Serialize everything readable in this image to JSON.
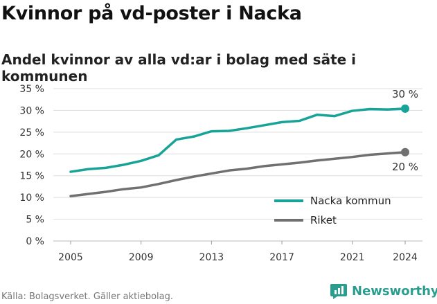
{
  "title": "Kvinnor på vd-poster i Nacka",
  "subtitle": "Andel kvinnor av alla vd:ar i bolag med säte i kommunen",
  "source": "Källa: Bolagsverket. Gäller aktiebolag.",
  "brand": {
    "name": "Newsworthy",
    "icon": "newsworthy-logo-icon",
    "color": "#2a9d8f"
  },
  "chart_data": {
    "type": "line",
    "title": "Kvinnor på vd-poster i Nacka",
    "subtitle": "Andel kvinnor av alla vd:ar i bolag med säte i kommunen",
    "xlabel": "",
    "ylabel": "",
    "x": [
      2005,
      2006,
      2007,
      2008,
      2009,
      2010,
      2011,
      2012,
      2013,
      2014,
      2015,
      2016,
      2017,
      2018,
      2019,
      2020,
      2021,
      2022,
      2023,
      2024
    ],
    "x_ticks": [
      "2005",
      "2009",
      "2013",
      "2017",
      "2021",
      "2024"
    ],
    "ylim": [
      0,
      35
    ],
    "y_ticks": [
      "0 %",
      "5 %",
      "10 %",
      "15 %",
      "20 %",
      "25 %",
      "30 %",
      "35 %"
    ],
    "grid": "horizontal",
    "legend_position": "bottom-right",
    "series": [
      {
        "name": "Nacka kommun",
        "color": "#17a398",
        "end_label": "30 %",
        "values": [
          15.9,
          16.5,
          16.8,
          17.5,
          18.4,
          19.7,
          23.3,
          24.0,
          25.2,
          25.3,
          25.9,
          26.6,
          27.3,
          27.6,
          29.0,
          28.7,
          29.9,
          30.3,
          30.2,
          30.4
        ]
      },
      {
        "name": "Riket",
        "color": "#707070",
        "end_label": "20 %",
        "values": [
          10.3,
          10.8,
          11.3,
          11.9,
          12.3,
          13.1,
          14.0,
          14.8,
          15.5,
          16.2,
          16.6,
          17.2,
          17.6,
          18.0,
          18.5,
          18.9,
          19.3,
          19.8,
          20.1,
          20.4
        ]
      }
    ]
  }
}
